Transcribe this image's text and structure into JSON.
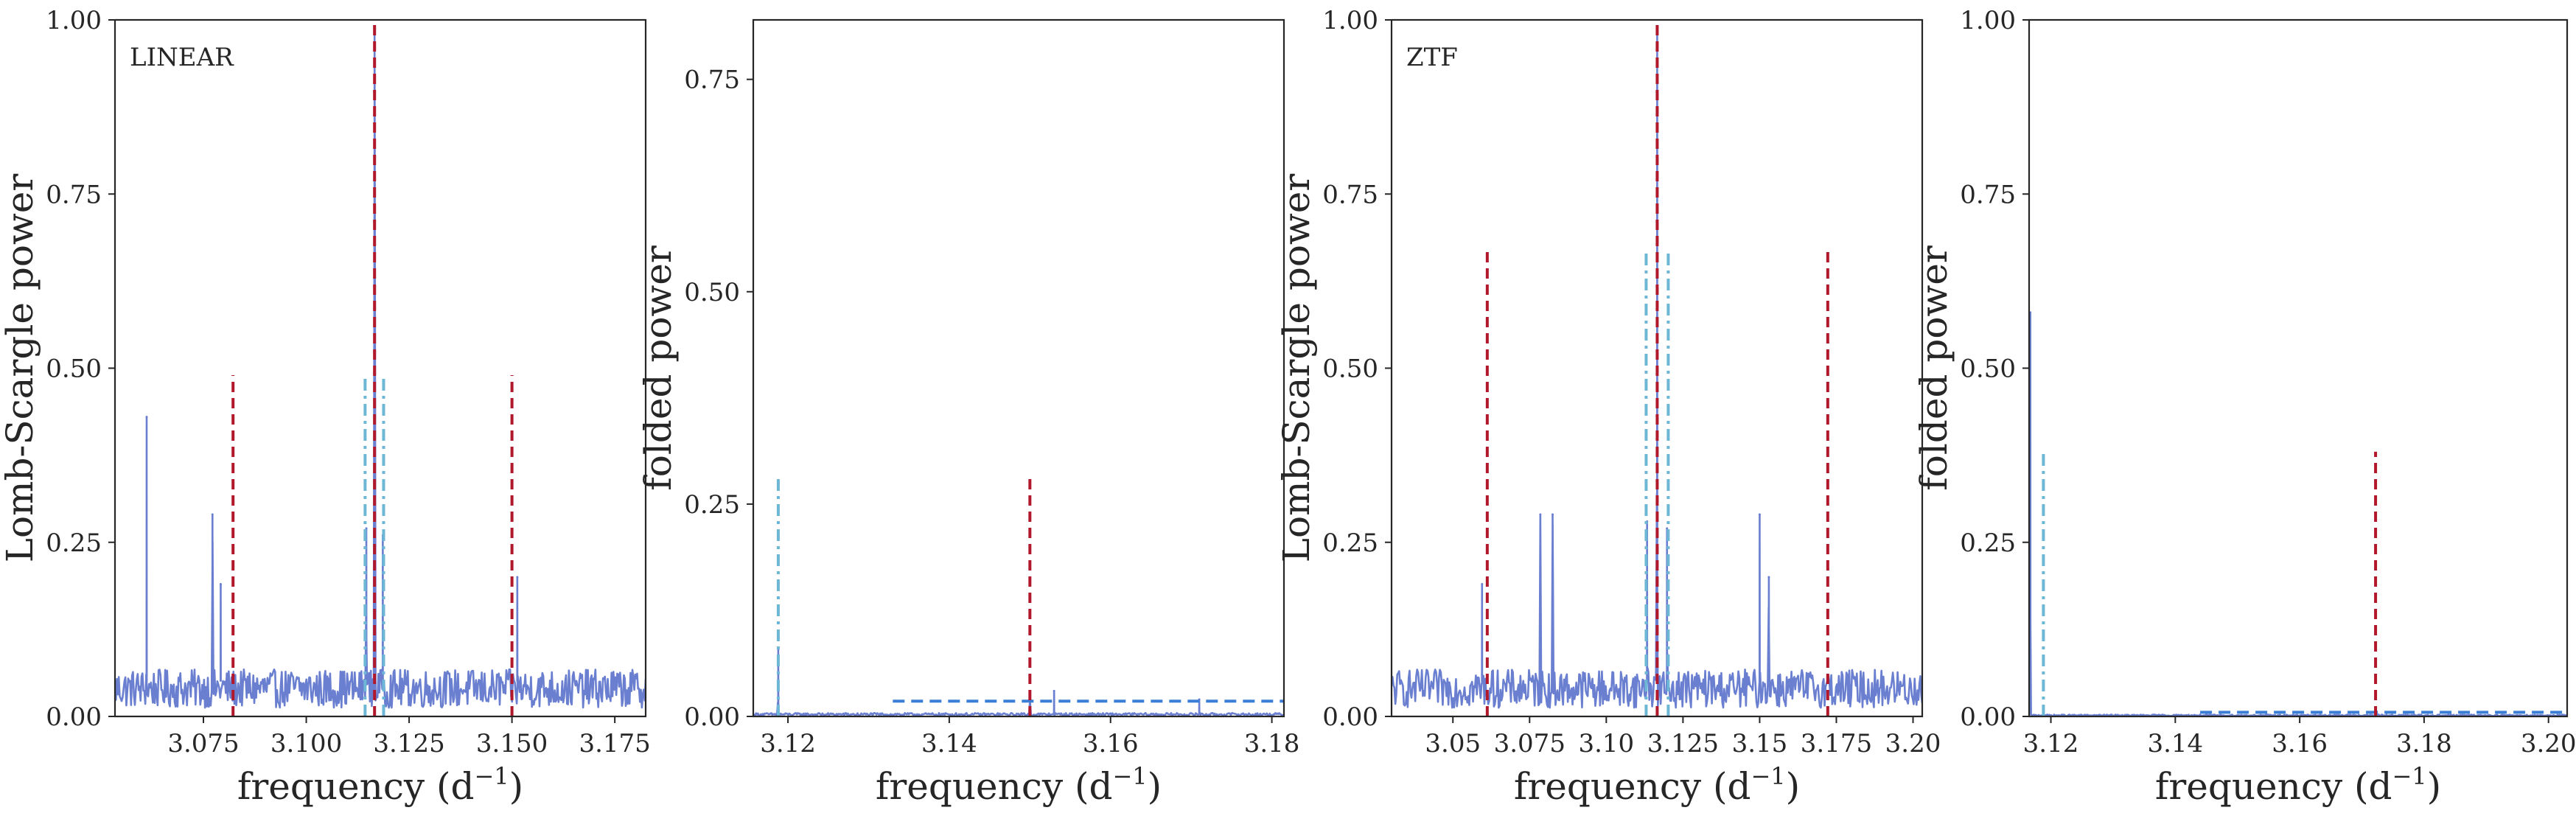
{
  "figure": {
    "xlabel": "frequency (d",
    "xlabel_sup": "−1",
    "xlabel_close": ")"
  },
  "colors": {
    "periodogram": "#6a7fd0",
    "main_peak": "#b2182b",
    "alias": "#b2182b",
    "secondary": "#6cb6d6",
    "threshold": "#3a7fd5",
    "axes": "#262626"
  },
  "chart_data": [
    {
      "type": "line",
      "panel": "LINEAR",
      "label": "LINEAR",
      "ylabel": "Lomb-Scargle power",
      "xlim": [
        3.0535,
        3.1825
      ],
      "ylim": [
        0,
        1
      ],
      "xticks": [
        3.075,
        3.1,
        3.125,
        3.15,
        3.175
      ],
      "xtick_labels": [
        "3.075",
        "3.100",
        "3.125",
        "3.150",
        "3.175"
      ],
      "yticks": [
        0,
        0.25,
        0.5,
        0.75,
        1
      ],
      "ytick_labels": [
        "0.00",
        "0.25",
        "0.50",
        "0.75",
        "1.00"
      ],
      "grid": false,
      "noise_level": 0.05,
      "peaks": [
        {
          "x": 3.0612,
          "y": 0.43
        },
        {
          "x": 3.0772,
          "y": 0.29
        },
        {
          "x": 3.0792,
          "y": 0.19
        },
        {
          "x": 3.1146,
          "y": 0.27
        },
        {
          "x": 3.1166,
          "y": 0.99
        },
        {
          "x": 3.1186,
          "y": 0.26
        },
        {
          "x": 3.1513,
          "y": 0.2
        }
      ],
      "vlines": [
        {
          "x": 3.1166,
          "ymax": 1.0,
          "style": "main"
        },
        {
          "x": 3.0822,
          "ymax": 0.49,
          "style": "alias"
        },
        {
          "x": 3.15,
          "ymax": 0.49,
          "style": "alias"
        },
        {
          "x": 3.1143,
          "ymax": 0.49,
          "style": "secondary"
        },
        {
          "x": 3.1188,
          "ymax": 0.49,
          "style": "secondary"
        }
      ]
    },
    {
      "type": "line",
      "panel": "LINEAR folded",
      "ylabel": "folded power",
      "xlim": [
        3.1157,
        3.1815
      ],
      "ylim": [
        0,
        0.82
      ],
      "xticks": [
        3.12,
        3.14,
        3.16,
        3.18
      ],
      "xtick_labels": [
        "3.12",
        "3.14",
        "3.16",
        "3.18"
      ],
      "yticks": [
        0,
        0.25,
        0.5,
        0.75
      ],
      "ytick_labels": [
        "0.00",
        "0.25",
        "0.50",
        "0.75"
      ],
      "grid": false,
      "noise_level": 0.003,
      "peaks": [
        {
          "x": 3.1188,
          "y": 0.08
        },
        {
          "x": 3.15,
          "y": 0.02
        },
        {
          "x": 3.153,
          "y": 0.03
        },
        {
          "x": 3.171,
          "y": 0.02
        }
      ],
      "vlines": [
        {
          "x": 3.15,
          "ymax": 0.28,
          "style": "alias"
        },
        {
          "x": 3.1188,
          "ymax": 0.28,
          "style": "secondary"
        }
      ],
      "hlines": [
        {
          "y": 0.018,
          "xmin": 3.133,
          "xmax": 3.1815,
          "style": "threshold"
        }
      ]
    },
    {
      "type": "line",
      "panel": "ZTF",
      "label": "ZTF",
      "ylabel": "Lomb-Scargle power",
      "xlim": [
        3.03,
        3.203
      ],
      "ylim": [
        0,
        1
      ],
      "xticks": [
        3.05,
        3.075,
        3.1,
        3.125,
        3.15,
        3.175,
        3.2
      ],
      "xtick_labels": [
        "3.05",
        "3.075",
        "3.10",
        "3.125",
        "3.15",
        "3.175",
        "3.20"
      ],
      "yticks": [
        0,
        0.25,
        0.5,
        0.75,
        1
      ],
      "ytick_labels": [
        "0.00",
        "0.25",
        "0.50",
        "0.75",
        "1.00"
      ],
      "grid": false,
      "noise_level": 0.05,
      "peaks": [
        {
          "x": 3.0595,
          "y": 0.19
        },
        {
          "x": 3.0785,
          "y": 0.29
        },
        {
          "x": 3.0825,
          "y": 0.29
        },
        {
          "x": 3.1133,
          "y": 0.28
        },
        {
          "x": 3.1166,
          "y": 0.99
        },
        {
          "x": 3.1198,
          "y": 0.27
        },
        {
          "x": 3.15,
          "y": 0.29
        },
        {
          "x": 3.153,
          "y": 0.2
        }
      ],
      "vlines": [
        {
          "x": 3.1166,
          "ymax": 1.0,
          "style": "main"
        },
        {
          "x": 3.0612,
          "ymax": 0.67,
          "style": "alias"
        },
        {
          "x": 3.1722,
          "ymax": 0.67,
          "style": "alias"
        },
        {
          "x": 3.113,
          "ymax": 0.67,
          "style": "secondary"
        },
        {
          "x": 3.1202,
          "ymax": 0.67,
          "style": "secondary"
        }
      ]
    },
    {
      "type": "line",
      "panel": "ZTF folded",
      "ylabel": "folded power",
      "xlim": [
        3.1165,
        3.203
      ],
      "ylim": [
        0,
        1
      ],
      "xticks": [
        3.12,
        3.14,
        3.16,
        3.18,
        3.2
      ],
      "xtick_labels": [
        "3.12",
        "3.14",
        "3.16",
        "3.18",
        "3.20"
      ],
      "yticks": [
        0,
        0.25,
        0.5,
        0.75,
        1
      ],
      "ytick_labels": [
        "0.00",
        "0.25",
        "0.50",
        "0.75",
        "1.00"
      ],
      "grid": false,
      "noise_level": 0.002,
      "peaks": [
        {
          "x": 3.1167,
          "y": 0.58
        }
      ],
      "vlines": [
        {
          "x": 3.1722,
          "ymax": 0.38,
          "style": "alias"
        },
        {
          "x": 3.1188,
          "ymax": 0.38,
          "style": "secondary"
        }
      ],
      "hlines": [
        {
          "y": 0.006,
          "xmin": 3.144,
          "xmax": 3.203,
          "style": "threshold"
        }
      ]
    }
  ]
}
